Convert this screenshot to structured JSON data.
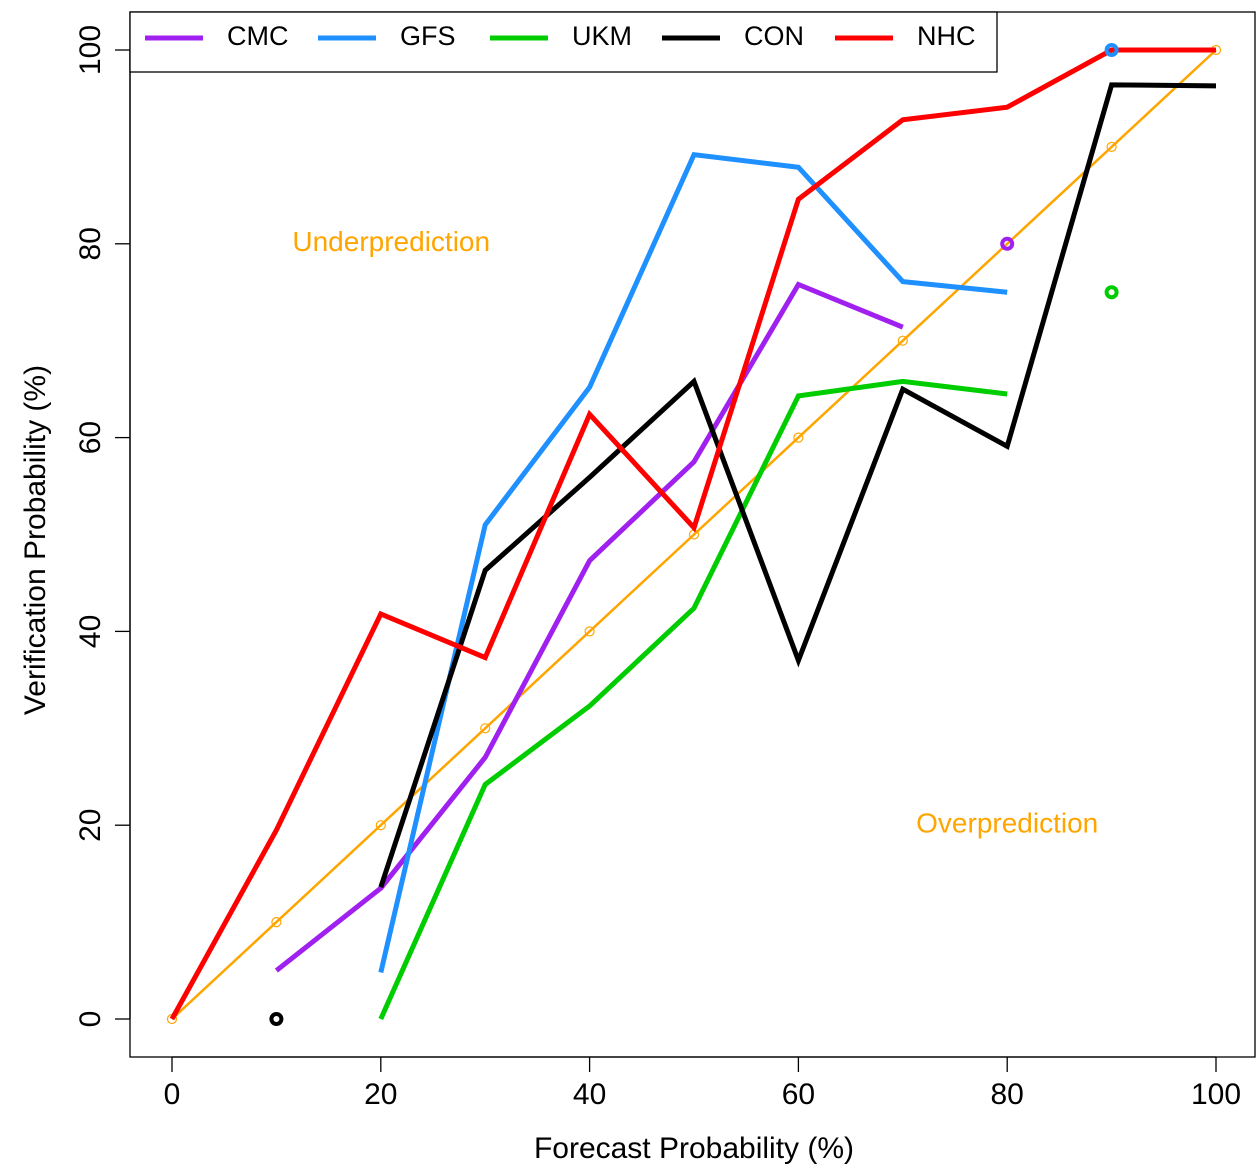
{
  "chart_data": {
    "type": "line",
    "xlabel": "Forecast Probability (%)",
    "ylabel": "Verification Probability (%)",
    "xlim": [
      0,
      100
    ],
    "ylim": [
      0,
      100
    ],
    "xticks": [
      "0",
      "20",
      "40",
      "60",
      "80",
      "100"
    ],
    "yticks": [
      "0",
      "20",
      "40",
      "60",
      "80",
      "100"
    ],
    "grid": false,
    "legend_position": "top-left",
    "annotations": [
      {
        "text": "Underprediction",
        "x": 21,
        "y": 80,
        "color": "#FFA500"
      },
      {
        "text": "Overprediction",
        "x": 80,
        "y": 20,
        "color": "#FFA500"
      }
    ],
    "reference": {
      "color": "#FFA500",
      "x": [
        0,
        10,
        20,
        30,
        40,
        50,
        60,
        70,
        80,
        90,
        100
      ],
      "y": [
        0,
        10,
        20,
        30,
        40,
        50,
        60,
        70,
        80,
        90,
        100
      ]
    },
    "series": [
      {
        "name": "CMC",
        "color": "#A020F0",
        "x": [
          10,
          20,
          30,
          40,
          50,
          60,
          70
        ],
        "y": [
          5,
          13.5,
          27,
          47.3,
          57.5,
          75.8,
          71.4
        ],
        "points": [
          {
            "x": 80,
            "y": 80
          }
        ]
      },
      {
        "name": "GFS",
        "color": "#1E90FF",
        "x": [
          20,
          30,
          40,
          50,
          60,
          70,
          80
        ],
        "y": [
          4.8,
          51,
          65.2,
          89.2,
          87.9,
          76.1,
          75
        ],
        "points": [
          {
            "x": 90,
            "y": 100
          }
        ]
      },
      {
        "name": "UKM",
        "color": "#00CD00",
        "x": [
          20,
          30,
          40,
          50,
          60,
          70,
          80
        ],
        "y": [
          0,
          24.2,
          32.3,
          42.4,
          64.3,
          65.8,
          64.5
        ],
        "points": [
          {
            "x": 90,
            "y": 75
          }
        ]
      },
      {
        "name": "CON",
        "color": "#000000",
        "x": [
          20,
          30,
          40,
          50,
          60,
          70,
          80,
          90,
          100
        ],
        "y": [
          13.6,
          46.3,
          55.9,
          65.8,
          37,
          65,
          59.1,
          96.4,
          96.3
        ],
        "points": [
          {
            "x": 10,
            "y": 0
          }
        ]
      },
      {
        "name": "NHC",
        "color": "#FF0000",
        "x": [
          0,
          10,
          20,
          30,
          40,
          50,
          60,
          70,
          80,
          90,
          100
        ],
        "y": [
          0,
          19.5,
          41.8,
          37.3,
          62.4,
          50.7,
          84.6,
          92.8,
          94.1,
          100,
          100
        ],
        "points": []
      }
    ]
  }
}
